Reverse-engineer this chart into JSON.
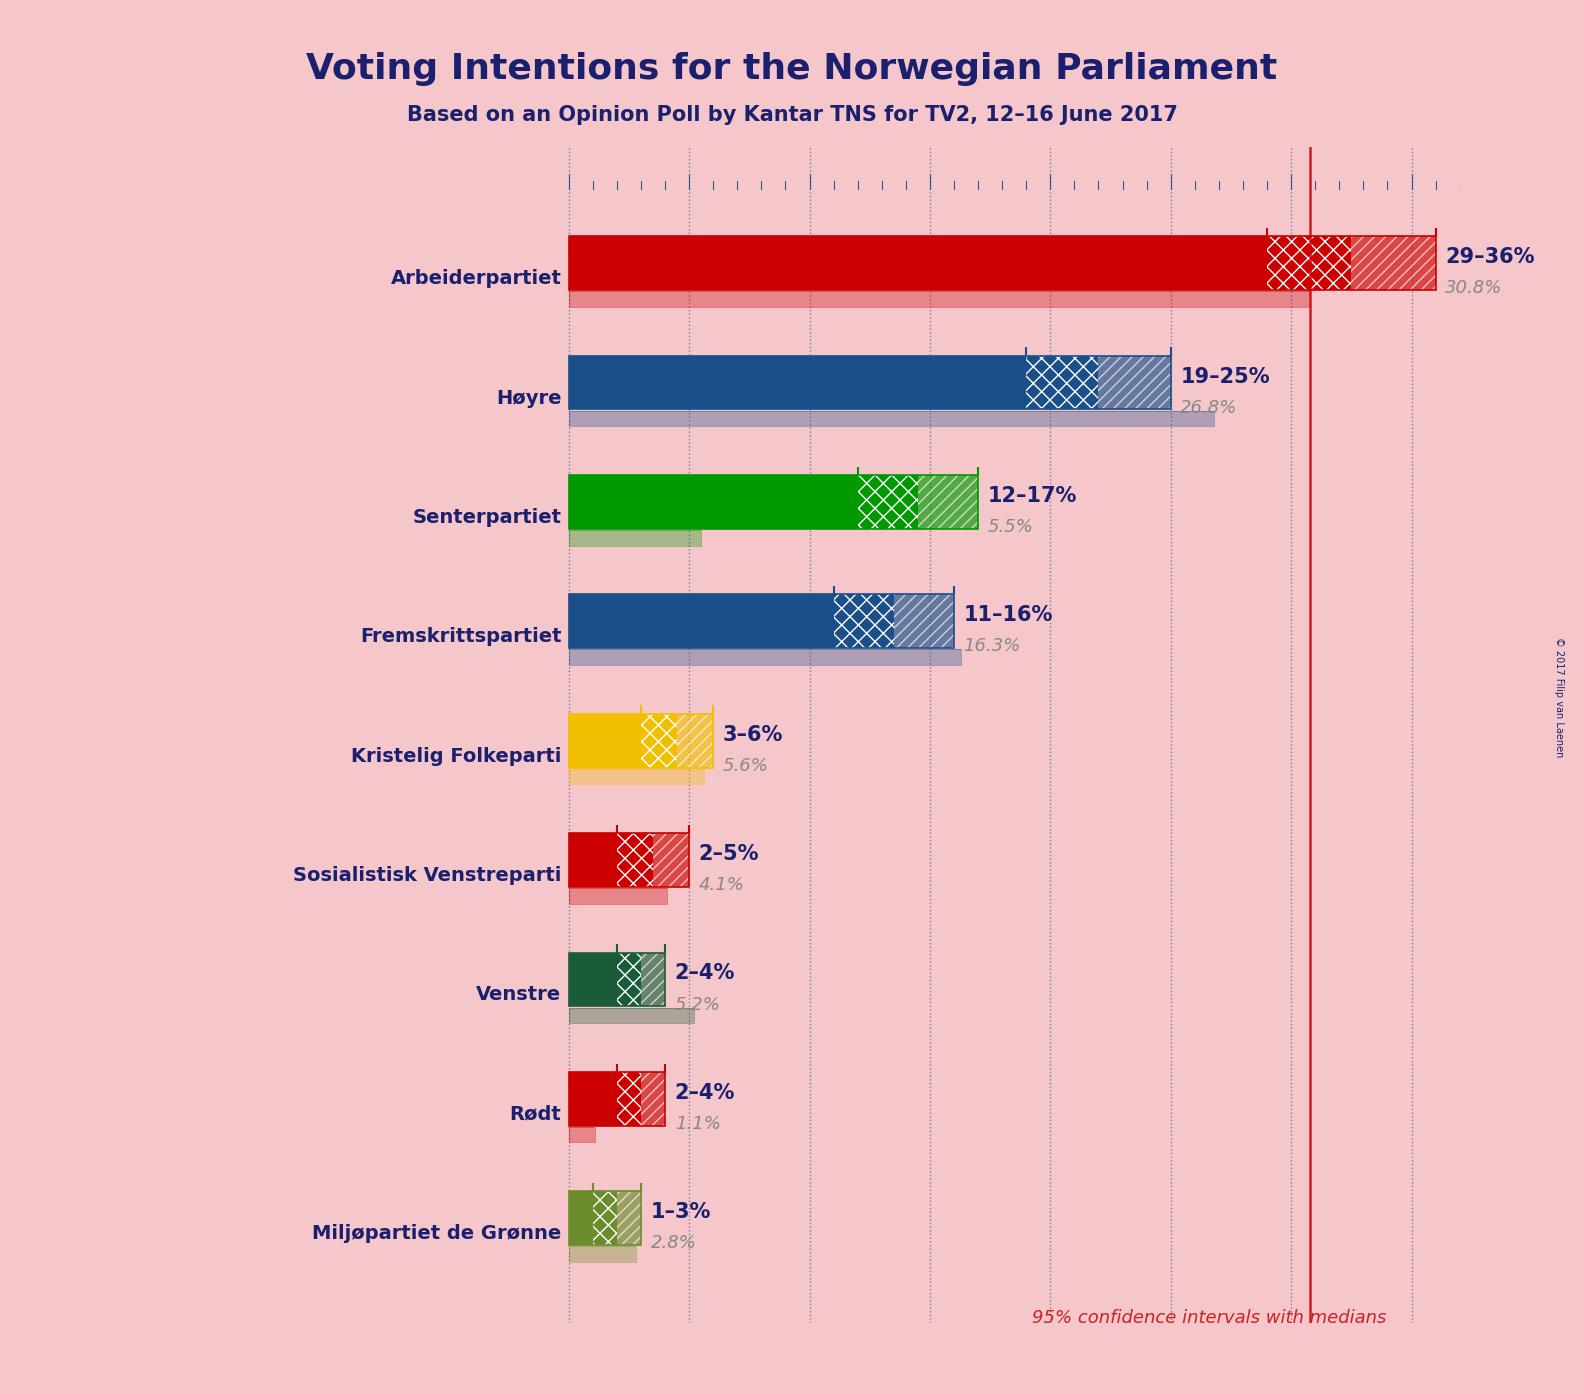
{
  "title": "Voting Intentions for the Norwegian Parliament",
  "subtitle": "Based on an Opinion Poll by Kantar TNS for TV2, 12–16 June 2017",
  "background_color": "#f5c6ca",
  "title_color": "#1a1f6e",
  "footnote": "95% confidence intervals with medians",
  "footnote_color": "#cc2222",
  "copyright": "© 2017 Filip van Laenen",
  "parties": [
    {
      "name": "Arbeiderpartiet",
      "ci_low": 29,
      "ci_high": 36,
      "median": 30.8,
      "color": "#cc0000",
      "label": "29–36%",
      "median_label": "30.8%"
    },
    {
      "name": "Høyre",
      "ci_low": 19,
      "ci_high": 25,
      "median": 26.8,
      "color": "#1a4f8a",
      "label": "19–25%",
      "median_label": "26.8%"
    },
    {
      "name": "Senterpartiet",
      "ci_low": 12,
      "ci_high": 17,
      "median": 5.5,
      "color": "#009900",
      "label": "12–17%",
      "median_label": "5.5%"
    },
    {
      "name": "Fremskrittspartiet",
      "ci_low": 11,
      "ci_high": 16,
      "median": 16.3,
      "color": "#1a4f8a",
      "label": "11–16%",
      "median_label": "16.3%"
    },
    {
      "name": "Kristelig Folkeparti",
      "ci_low": 3,
      "ci_high": 6,
      "median": 5.6,
      "color": "#f0c000",
      "label": "3–6%",
      "median_label": "5.6%"
    },
    {
      "name": "Sosialistisk Venstreparti",
      "ci_low": 2,
      "ci_high": 5,
      "median": 4.1,
      "color": "#cc0000",
      "label": "2–5%",
      "median_label": "4.1%"
    },
    {
      "name": "Venstre",
      "ci_low": 2,
      "ci_high": 4,
      "median": 5.2,
      "color": "#1a5c3a",
      "label": "2–4%",
      "median_label": "5.2%"
    },
    {
      "name": "Rødt",
      "ci_low": 2,
      "ci_high": 4,
      "median": 1.1,
      "color": "#cc0000",
      "label": "2–4%",
      "median_label": "1.1%"
    },
    {
      "name": "Miljøpartiet de Grønne",
      "ci_low": 1,
      "ci_high": 3,
      "median": 2.8,
      "color": "#6b8c2a",
      "label": "1–3%",
      "median_label": "2.8%"
    }
  ],
  "xmax": 37,
  "red_line_x": 30.8,
  "bar_height": 0.45,
  "median_bar_height": 0.13,
  "grid_ticks": [
    0,
    5,
    10,
    15,
    20,
    25,
    30,
    35
  ]
}
